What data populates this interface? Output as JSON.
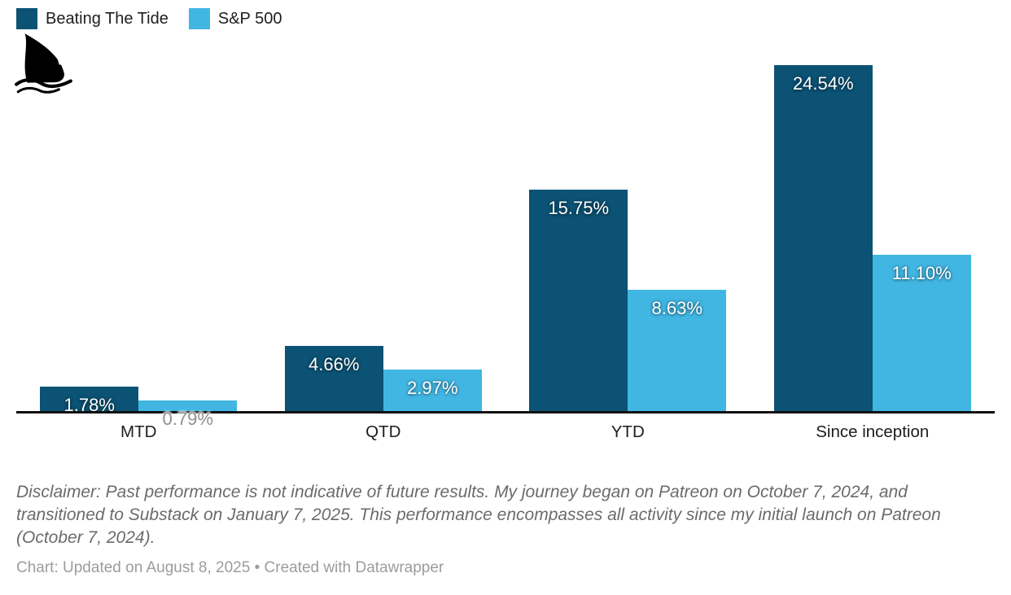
{
  "legend": {
    "items": [
      {
        "label": "Beating The Tide",
        "color": "#0b5274"
      },
      {
        "label": "S&P 500",
        "color": "#41b6e2"
      }
    ]
  },
  "logo": {
    "name": "shark-fin-logo"
  },
  "chart_data": {
    "type": "bar",
    "title": "",
    "categories": [
      "MTD",
      "QTD",
      "YTD",
      "Since inception"
    ],
    "series": [
      {
        "name": "Beating The Tide",
        "color": "#0b5274",
        "values": [
          1.78,
          4.66,
          15.75,
          24.54
        ],
        "labels": [
          "1.78%",
          "4.66%",
          "15.75%",
          "24.54%"
        ]
      },
      {
        "name": "S&P 500",
        "color": "#41b6e2",
        "values": [
          0.79,
          2.97,
          8.63,
          11.1
        ],
        "labels": [
          "0.79%",
          "2.97%",
          "8.63%",
          "11.10%"
        ]
      }
    ],
    "xlabel": "",
    "ylabel": "",
    "ylim": [
      0,
      24.54
    ],
    "grid": false,
    "legend_position": "top-left",
    "label_format": "percent",
    "baseline_color": "#111111",
    "small_bar_label_color": "#8f8f8f"
  },
  "footer": {
    "disclaimer": "Disclaimer: Past performance is not indicative of future results. My journey began on Patreon on October 7, 2024, and transitioned to Substack on January 7, 2025. This performance encompasses all activity since my initial launch on Patreon (October 7, 2024).",
    "credit": "Chart: Updated on August 8, 2025 • Created with Datawrapper"
  }
}
